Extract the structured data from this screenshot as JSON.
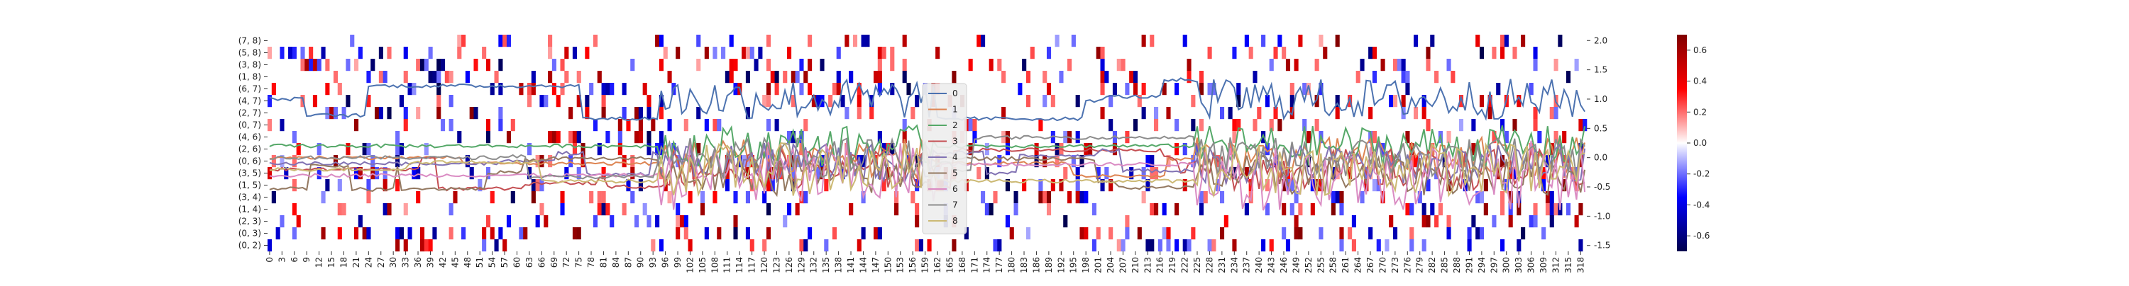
{
  "chart_data": {
    "type": "heatmap",
    "title": "",
    "xlabel": "",
    "ylabel": "",
    "row_labels": [
      "(7, 8)",
      "(5, 8)",
      "(3, 8)",
      "(1, 8)",
      "(6, 7)",
      "(4, 7)",
      "(2, 7)",
      "(0, 7)",
      "(4, 6)",
      "(2, 6)",
      "(0, 6)",
      "(3, 5)",
      "(1, 5)",
      "(3, 4)",
      "(1, 4)",
      "(2, 3)",
      "(0, 3)",
      "(0, 2)"
    ],
    "n_columns": 320,
    "x_tick_labels": [
      "0",
      "3",
      "6",
      "9",
      "12",
      "15",
      "18",
      "21",
      "24",
      "27",
      "30",
      "33",
      "36",
      "39",
      "42",
      "45",
      "48",
      "51",
      "54",
      "57",
      "60",
      "63",
      "66",
      "69",
      "72",
      "75",
      "78",
      "81",
      "84",
      "87",
      "90",
      "93",
      "96",
      "99",
      "102",
      "105",
      "108",
      "111",
      "114",
      "117",
      "120",
      "123",
      "126",
      "129",
      "132",
      "135",
      "138",
      "141",
      "144",
      "147",
      "150",
      "153",
      "156",
      "159",
      "162",
      "165",
      "168",
      "171",
      "174",
      "177",
      "180",
      "183",
      "186",
      "189",
      "192",
      "195",
      "198",
      "201",
      "204",
      "207",
      "210",
      "213",
      "216",
      "219",
      "222",
      "225",
      "228",
      "231",
      "234",
      "237",
      "240",
      "243",
      "246",
      "249",
      "252",
      "255",
      "258",
      "261",
      "264",
      "267",
      "270",
      "273",
      "276",
      "279",
      "282",
      "285",
      "288",
      "291",
      "294",
      "297",
      "300",
      "303",
      "306",
      "309",
      "312",
      "315",
      "318"
    ],
    "colorbar": {
      "range": [
        -0.7,
        0.7
      ],
      "tick_labels": [
        "0.6",
        "0.4",
        "0.2",
        "0.0",
        "-0.2",
        "-0.4",
        "-0.6"
      ],
      "colormap": "seismic",
      "colors": [
        "#00004c",
        "#0000ff",
        "#ffffff",
        "#ff0000",
        "#800000"
      ]
    },
    "line_axis": {
      "range": [
        -1.6,
        2.1
      ],
      "tick_labels": [
        "2.0",
        "1.5",
        "1.0",
        "0.5",
        "0.0",
        "-0.5",
        "-1.0",
        "-1.5"
      ]
    },
    "legend": {
      "placement": "center",
      "entries": [
        "0",
        "1",
        "2",
        "3",
        "4",
        "5",
        "6",
        "7",
        "8"
      ]
    },
    "series": [
      {
        "name": "0",
        "color": "#4c72b0",
        "baseline": 1.0,
        "noise_amp": 0.35
      },
      {
        "name": "1",
        "color": "#dd8452",
        "baseline": 0.0,
        "noise_amp": 0.35
      },
      {
        "name": "2",
        "color": "#55a868",
        "baseline": 0.2,
        "noise_amp": 0.35
      },
      {
        "name": "3",
        "color": "#c44e52",
        "baseline": -0.2,
        "noise_amp": 0.35
      },
      {
        "name": "4",
        "color": "#8172b3",
        "baseline": -0.1,
        "noise_amp": 0.35
      },
      {
        "name": "5",
        "color": "#937860",
        "baseline": -0.3,
        "noise_amp": 0.35
      },
      {
        "name": "6",
        "color": "#da8bc3",
        "baseline": -0.3,
        "noise_amp": 0.6
      },
      {
        "name": "7",
        "color": "#8c8c8c",
        "baseline": 0.0,
        "noise_amp": 0.35
      },
      {
        "name": "8",
        "color": "#ccb974",
        "baseline": -0.2,
        "noise_amp": 0.45
      }
    ],
    "grid": false
  }
}
